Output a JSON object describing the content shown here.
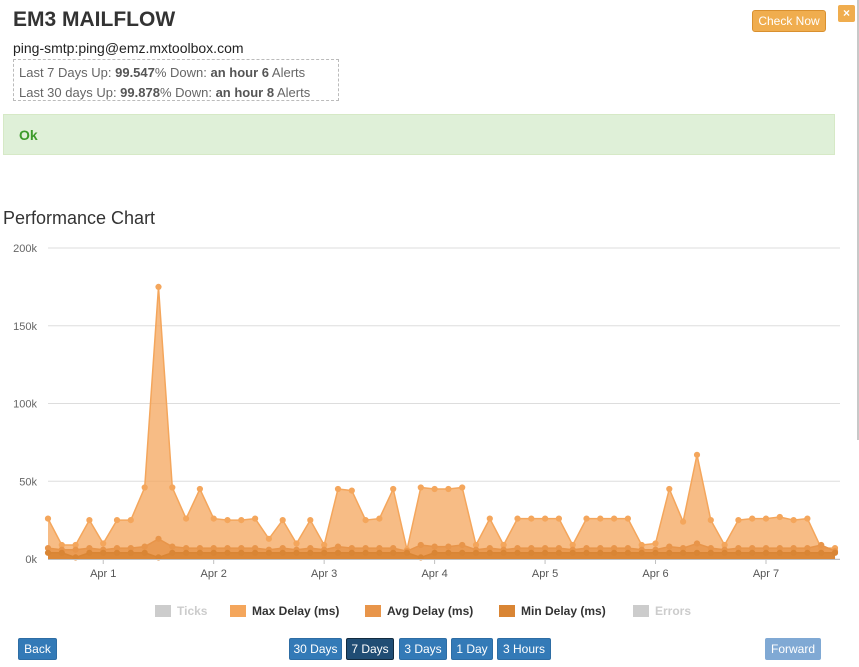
{
  "header": {
    "title": "EM3 MAILFLOW",
    "subtitle": "ping-smtp:ping@emz.mxtoolbox.com",
    "check_now_label": "Check Now",
    "close_label": "×"
  },
  "uptime": {
    "row1": {
      "prefix": "Last 7 Days Up: ",
      "up": "99.547",
      "mid": "% Down: ",
      "down": "an hour 6",
      "suffix": " Alerts"
    },
    "row2": {
      "prefix": "Last 30 days Up: ",
      "up": "99.878",
      "mid": "% Down: ",
      "down": "an hour 8",
      "suffix": " Alerts"
    }
  },
  "status": {
    "text": "Ok",
    "color": "#3c9a2a"
  },
  "chart_heading": "Performance Chart",
  "chart_data": {
    "type": "area",
    "title": "Performance Chart",
    "ylim": [
      0,
      200000
    ],
    "yticks": [
      0,
      50000,
      100000,
      150000,
      200000
    ],
    "ytick_labels": [
      "0k",
      "50k",
      "100k",
      "150k",
      "200k"
    ],
    "xlim": [
      0.5,
      7.67
    ],
    "xticks": [
      1,
      2,
      3,
      4,
      5,
      6,
      7
    ],
    "xtick_labels": [
      "Apr 1",
      "Apr 2",
      "Apr 3",
      "Apr 4",
      "Apr 5",
      "Apr 6",
      "Apr 7"
    ],
    "grid": true,
    "legend_position": "bottom",
    "legend": [
      {
        "name": "Ticks",
        "color": "#cccccc",
        "visible": false
      },
      {
        "name": "Max Delay (ms)",
        "color": "#f4a65c",
        "visible": true
      },
      {
        "name": "Avg Delay (ms)",
        "color": "#e8954a",
        "visible": true
      },
      {
        "name": "Min Delay (ms)",
        "color": "#d98534",
        "visible": true
      },
      {
        "name": "Errors",
        "color": "#cccccc",
        "visible": false
      }
    ],
    "x": [
      0.5,
      0.625,
      0.75,
      0.875,
      1.0,
      1.125,
      1.25,
      1.375,
      1.5,
      1.625,
      1.75,
      1.875,
      2.0,
      2.125,
      2.25,
      2.375,
      2.5,
      2.625,
      2.75,
      2.875,
      3.0,
      3.125,
      3.25,
      3.375,
      3.5,
      3.625,
      3.75,
      3.875,
      4.0,
      4.125,
      4.25,
      4.375,
      4.5,
      4.625,
      4.75,
      4.875,
      5.0,
      5.125,
      5.25,
      5.375,
      5.5,
      5.625,
      5.75,
      5.875,
      6.0,
      6.125,
      6.25,
      6.375,
      6.5,
      6.625,
      6.75,
      6.875,
      7.0,
      7.125,
      7.25,
      7.375,
      7.5,
      7.625
    ],
    "series": [
      {
        "name": "Max Delay (ms)",
        "color": "#f4a65c",
        "values": [
          26000,
          9000,
          9000,
          25000,
          10000,
          25000,
          25000,
          46000,
          175000,
          46000,
          26000,
          45000,
          26000,
          25000,
          25000,
          26000,
          13000,
          25000,
          10000,
          25000,
          9000,
          45000,
          44000,
          25000,
          26000,
          45000,
          6000,
          46000,
          45000,
          45000,
          46000,
          9000,
          26000,
          9000,
          26000,
          26000,
          26000,
          26000,
          9000,
          26000,
          26000,
          26000,
          26000,
          9000,
          10000,
          45000,
          24000,
          67000,
          25000,
          9000,
          25000,
          26000,
          26000,
          27000,
          25000,
          26000,
          7000,
          7000
        ]
      },
      {
        "name": "Avg Delay (ms)",
        "color": "#e8954a",
        "values": [
          7000,
          6000,
          6000,
          7000,
          6000,
          7000,
          7000,
          8000,
          13000,
          8000,
          7000,
          7000,
          7000,
          7000,
          7000,
          7000,
          6000,
          7000,
          6000,
          7000,
          6000,
          8000,
          7000,
          7000,
          7000,
          7000,
          5000,
          9000,
          8000,
          8000,
          9000,
          6000,
          7000,
          6000,
          7000,
          7000,
          7000,
          7000,
          6000,
          7000,
          7000,
          7000,
          7000,
          6000,
          6000,
          8000,
          7000,
          10000,
          7000,
          6000,
          7000,
          7000,
          7000,
          7000,
          7000,
          7000,
          9000,
          5000
        ]
      },
      {
        "name": "Min Delay (ms)",
        "color": "#d98534",
        "values": [
          4000,
          4000,
          1000,
          4000,
          4000,
          4000,
          4000,
          4000,
          1000,
          4000,
          4000,
          4000,
          4000,
          4000,
          4000,
          4000,
          4000,
          4000,
          4000,
          4000,
          4000,
          4000,
          4000,
          4000,
          4000,
          4000,
          4000,
          1000,
          4000,
          4000,
          4000,
          4000,
          4000,
          4000,
          4000,
          4000,
          4000,
          4000,
          4000,
          4000,
          4000,
          4000,
          4000,
          4000,
          4000,
          4000,
          4000,
          4000,
          4000,
          4000,
          4000,
          4000,
          4000,
          4000,
          4000,
          4000,
          4000,
          4000
        ]
      }
    ]
  },
  "nav": {
    "back": "Back",
    "ranges": [
      "30 Days",
      "7 Days",
      "3 Days",
      "1 Day",
      "3 Hours"
    ],
    "active_range": "7 Days",
    "forward": "Forward"
  }
}
